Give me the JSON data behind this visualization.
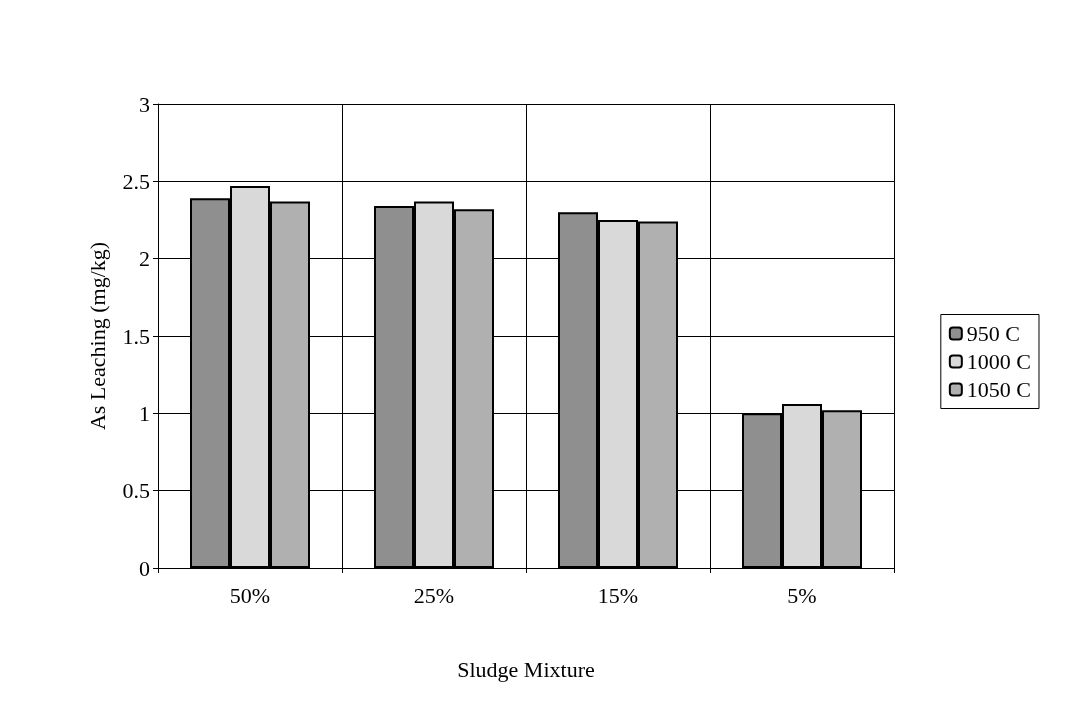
{
  "chart_data": {
    "type": "bar",
    "xlabel": "Sludge Mixture",
    "ylabel": "As Leaching (mg/kg)",
    "categories": [
      "50%",
      "25%",
      "15%",
      "5%"
    ],
    "series": [
      {
        "name": "950 C",
        "color": "#8f8f8f",
        "values": [
          2.39,
          2.34,
          2.3,
          1.0
        ]
      },
      {
        "name": "1000 C",
        "color": "#d9d9d9",
        "values": [
          2.47,
          2.37,
          2.25,
          1.06
        ]
      },
      {
        "name": "1050 C",
        "color": "#b0b0b0",
        "values": [
          2.37,
          2.32,
          2.24,
          1.02
        ]
      }
    ],
    "ylim": [
      0,
      3
    ],
    "yticks": [
      0,
      0.5,
      1,
      1.5,
      2,
      2.5,
      3
    ],
    "grid": true,
    "legend": "right"
  }
}
